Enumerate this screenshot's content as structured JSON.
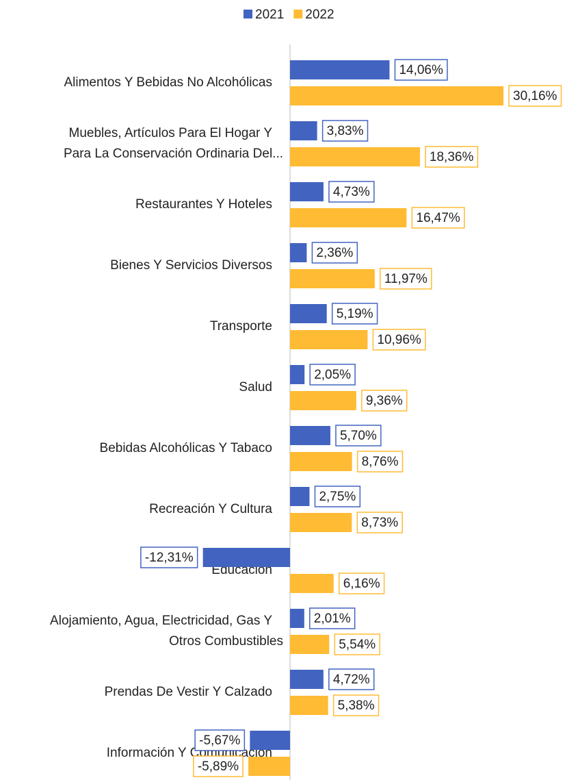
{
  "chart_data": {
    "type": "bar",
    "orientation": "horizontal",
    "categories": [
      "Alimentos Y Bebidas No Alcohólicas",
      "Muebles, Artículos Para El Hogar Y\nPara La Conservación Ordinaria Del...",
      "Restaurantes Y Hoteles",
      "Bienes Y Servicios Diversos",
      "Transporte",
      "Salud",
      "Bebidas Alcohólicas Y Tabaco",
      "Recreación Y Cultura",
      "Educación",
      "Alojamiento, Agua, Electricidad, Gas Y\nOtros Combustibles",
      "Prendas De Vestir Y Calzado",
      "Información Y Comunicación"
    ],
    "series": [
      {
        "name": "2021",
        "color": "#4264c0",
        "values": [
          14.06,
          3.83,
          4.73,
          2.36,
          5.19,
          2.05,
          5.7,
          2.75,
          -12.31,
          2.01,
          4.72,
          -5.67
        ],
        "value_labels": [
          "14,06%",
          "3,83%",
          "4,73%",
          "2,36%",
          "5,19%",
          "2,05%",
          "5,70%",
          "2,75%",
          "-12,31%",
          "2,01%",
          "4,72%",
          "-5,67%"
        ]
      },
      {
        "name": "2022",
        "color": "#ffbb33",
        "values": [
          30.16,
          18.36,
          16.47,
          11.97,
          10.96,
          9.36,
          8.76,
          8.73,
          6.16,
          5.54,
          5.38,
          -5.89
        ],
        "value_labels": [
          "30,16%",
          "18,36%",
          "16,47%",
          "11,97%",
          "10,96%",
          "9,36%",
          "8,76%",
          "8,73%",
          "6,16%",
          "5,54%",
          "5,38%",
          "-5,89%"
        ]
      }
    ],
    "legend": "top"
  }
}
